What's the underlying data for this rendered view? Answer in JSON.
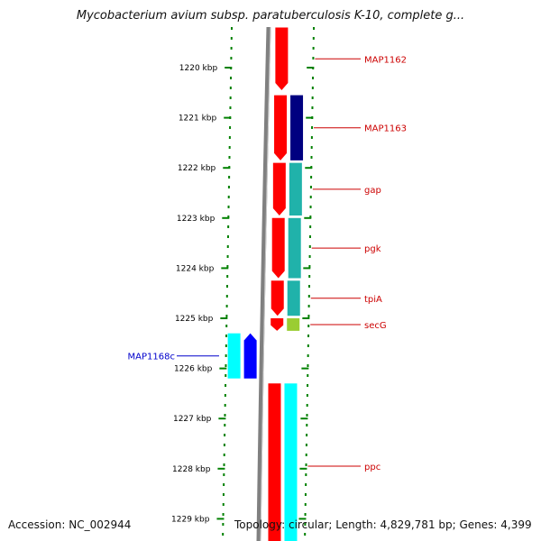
{
  "title": "Mycobacterium avium subsp. paratuberculosis K-10, complete g...",
  "footer": {
    "accession": "Accession: NC_002944",
    "genome_info": "Topology: circular; Length: 4,829,781 bp; Genes: 4,399"
  },
  "scale": {
    "unit": "kbp",
    "ticks": [
      {
        "kbp": 1220,
        "label": "1220 kbp"
      },
      {
        "kbp": 1221,
        "label": "1221 kbp"
      },
      {
        "kbp": 1222,
        "label": "1222 kbp"
      },
      {
        "kbp": 1223,
        "label": "1223 kbp"
      },
      {
        "kbp": 1224,
        "label": "1224 kbp"
      },
      {
        "kbp": 1225,
        "label": "1225 kbp"
      },
      {
        "kbp": 1226,
        "label": "1226 kbp"
      },
      {
        "kbp": 1227,
        "label": "1227 kbp"
      },
      {
        "kbp": 1228,
        "label": "1228 kbp"
      },
      {
        "kbp": 1229,
        "label": "1229 kbp"
      }
    ]
  },
  "genes": [
    {
      "name": "MAP1162",
      "strand": "forward",
      "start_kbp": 1219.2,
      "end_kbp": 1220.45,
      "label_color": "#cc0000"
    },
    {
      "name": "MAP1163",
      "strand": "forward",
      "start_kbp": 1220.55,
      "end_kbp": 1221.85,
      "label_color": "#cc0000"
    },
    {
      "name": "gap",
      "strand": "forward",
      "start_kbp": 1221.9,
      "end_kbp": 1222.95,
      "label_color": "#cc0000"
    },
    {
      "name": "pgk",
      "strand": "forward",
      "start_kbp": 1223.0,
      "end_kbp": 1224.2,
      "label_color": "#cc0000"
    },
    {
      "name": "tpiA",
      "strand": "forward",
      "start_kbp": 1224.25,
      "end_kbp": 1224.95,
      "label_color": "#cc0000"
    },
    {
      "name": "secG",
      "strand": "forward",
      "start_kbp": 1225.0,
      "end_kbp": 1225.25,
      "label_color": "#cc0000"
    },
    {
      "name": "MAP1168c",
      "strand": "reverse",
      "start_kbp": 1225.3,
      "end_kbp": 1226.2,
      "label_color": "#0000cc"
    },
    {
      "name": "ppc",
      "strand": "forward",
      "start_kbp": 1226.3,
      "end_kbp": 1229.6,
      "label_color": "#cc0000"
    }
  ],
  "colors": {
    "forward_cds": "#ff0000",
    "reverse_cds": "#0000ff",
    "backbone": "#808080",
    "tick_marks": "#008000",
    "label_forward": "#cc0000",
    "label_reverse": "#0000cc"
  },
  "feature_colors": {
    "MAP1163": "#000080",
    "gap": "#20b2aa",
    "pgk": "#20b2aa",
    "tpiA": "#20b2aa",
    "secG": "#9acd32",
    "MAP1168c": "#00ffff",
    "ppc": "#00ffff"
  }
}
